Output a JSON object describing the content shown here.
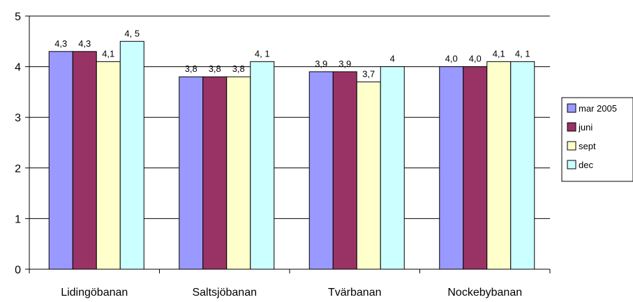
{
  "chart_data": {
    "type": "bar",
    "categories": [
      "Lidingöbanan",
      "Saltsjöbanan",
      "Tvärbanan",
      "Nockebybanan"
    ],
    "series": [
      {
        "name": "mar 2005",
        "color": "#9999FF",
        "values": [
          4.3,
          3.8,
          3.9,
          4.0
        ],
        "labels": [
          "4,3",
          "3,8",
          "3,9",
          "4,0"
        ]
      },
      {
        "name": "juni",
        "color": "#993366",
        "values": [
          4.3,
          3.8,
          3.9,
          4.0
        ],
        "labels": [
          "4,3",
          "3,8",
          "3,9",
          "4,0"
        ]
      },
      {
        "name": "sept",
        "color": "#FFFFCC",
        "values": [
          4.1,
          3.8,
          3.7,
          4.1
        ],
        "labels": [
          "4,1",
          "3,8",
          "3,7",
          "4,1"
        ]
      },
      {
        "name": "dec",
        "color": "#CCFFFF",
        "values": [
          4.5,
          4.1,
          4.0,
          4.1
        ],
        "labels": [
          "4, 5",
          "4, 1",
          "4",
          "4, 1"
        ]
      }
    ],
    "ylim": [
      0,
      5
    ],
    "yticks": [
      "0",
      "1",
      "2",
      "3",
      "4",
      "5"
    ],
    "grid": true,
    "legend_position": "right"
  }
}
